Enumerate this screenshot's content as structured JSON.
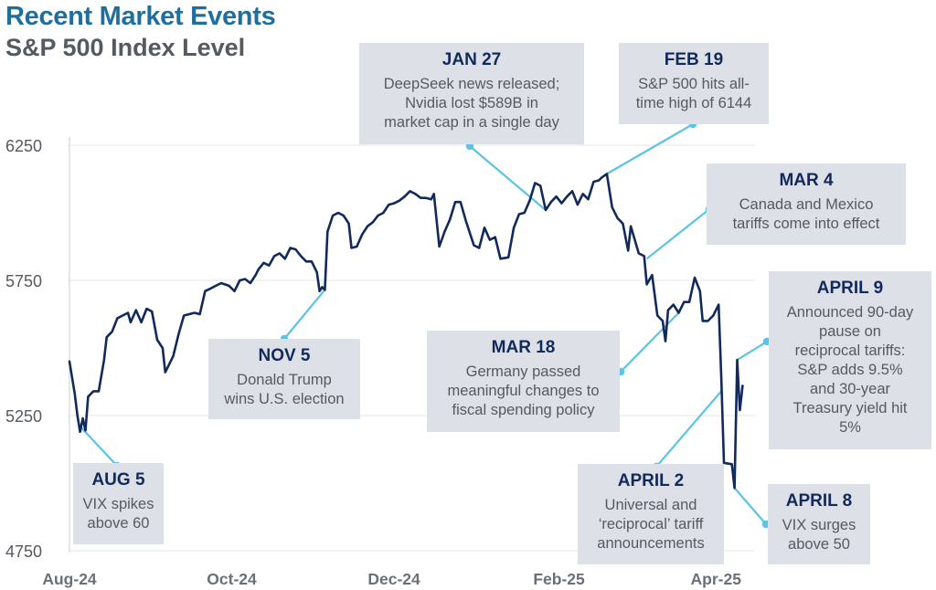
{
  "title": "Recent Market Events",
  "subtitle": "S&P 500 Index Level",
  "colors": {
    "title": "#1f6f9e",
    "line": "#12295c",
    "connector": "#5cc2e6",
    "box": "#dde1e7",
    "grid": "#e4e6ea",
    "text": "#555a60"
  },
  "chart_data": {
    "type": "line",
    "title": "Recent Market Events",
    "subtitle": "S&P 500 Index Level",
    "ylim": [
      4750,
      6300
    ],
    "yticks": [
      "6250",
      "5750",
      "5250",
      "4750"
    ],
    "xticks": [
      "Aug-24",
      "Oct-24",
      "Dec-24",
      "Feb-25",
      "Apr-25"
    ],
    "grid": true,
    "series": [
      {
        "values": [
          [
            "2024-08-01",
            5450
          ],
          [
            "2024-08-03",
            5330
          ],
          [
            "2024-08-04",
            5250
          ],
          [
            "2024-08-05",
            5190
          ],
          [
            "2024-08-06",
            5240
          ],
          [
            "2024-08-07",
            5195
          ],
          [
            "2024-08-08",
            5320
          ],
          [
            "2024-08-10",
            5340
          ],
          [
            "2024-08-12",
            5340
          ],
          [
            "2024-08-14",
            5455
          ],
          [
            "2024-08-15",
            5540
          ],
          [
            "2024-08-17",
            5560
          ],
          [
            "2024-08-19",
            5610
          ],
          [
            "2024-08-21",
            5620
          ],
          [
            "2024-08-23",
            5630
          ],
          [
            "2024-08-24",
            5595
          ],
          [
            "2024-08-26",
            5640
          ],
          [
            "2024-08-28",
            5595
          ],
          [
            "2024-08-30",
            5645
          ],
          [
            "2024-09-01",
            5635
          ],
          [
            "2024-09-03",
            5530
          ],
          [
            "2024-09-05",
            5500
          ],
          [
            "2024-09-06",
            5410
          ],
          [
            "2024-09-09",
            5470
          ],
          [
            "2024-09-11",
            5550
          ],
          [
            "2024-09-13",
            5620
          ],
          [
            "2024-09-17",
            5630
          ],
          [
            "2024-09-19",
            5625
          ],
          [
            "2024-09-21",
            5710
          ],
          [
            "2024-09-23",
            5720
          ],
          [
            "2024-09-25",
            5730
          ],
          [
            "2024-09-27",
            5740
          ],
          [
            "2024-09-30",
            5730
          ],
          [
            "2024-10-02",
            5710
          ],
          [
            "2024-10-04",
            5750
          ],
          [
            "2024-10-06",
            5755
          ],
          [
            "2024-10-08",
            5740
          ],
          [
            "2024-10-10",
            5770
          ],
          [
            "2024-10-11",
            5790
          ],
          [
            "2024-10-13",
            5815
          ],
          [
            "2024-10-15",
            5805
          ],
          [
            "2024-10-17",
            5840
          ],
          [
            "2024-10-19",
            5850
          ],
          [
            "2024-10-21",
            5830
          ],
          [
            "2024-10-23",
            5870
          ],
          [
            "2024-10-25",
            5865
          ],
          [
            "2024-10-27",
            5840
          ],
          [
            "2024-10-29",
            5820
          ],
          [
            "2024-10-31",
            5820
          ],
          [
            "2024-11-02",
            5780
          ],
          [
            "2024-11-03",
            5710
          ],
          [
            "2024-11-04",
            5725
          ],
          [
            "2024-11-05",
            5715
          ],
          [
            "2024-11-06",
            5930
          ],
          [
            "2024-11-08",
            5990
          ],
          [
            "2024-11-10",
            6000
          ],
          [
            "2024-11-12",
            5990
          ],
          [
            "2024-11-14",
            5960
          ],
          [
            "2024-11-15",
            5870
          ],
          [
            "2024-11-17",
            5875
          ],
          [
            "2024-11-19",
            5920
          ],
          [
            "2024-11-21",
            5950
          ],
          [
            "2024-11-23",
            5965
          ],
          [
            "2024-11-25",
            5990
          ],
          [
            "2024-11-27",
            6000
          ],
          [
            "2024-11-29",
            6030
          ],
          [
            "2024-12-01",
            6035
          ],
          [
            "2024-12-03",
            6045
          ],
          [
            "2024-12-05",
            6060
          ],
          [
            "2024-12-07",
            6080
          ],
          [
            "2024-12-09",
            6070
          ],
          [
            "2024-12-11",
            6055
          ],
          [
            "2024-12-13",
            6055
          ],
          [
            "2024-12-15",
            6050
          ],
          [
            "2024-12-16",
            6070
          ],
          [
            "2024-12-18",
            5875
          ],
          [
            "2024-12-20",
            5930
          ],
          [
            "2024-12-22",
            5975
          ],
          [
            "2024-12-24",
            6040
          ],
          [
            "2024-12-26",
            6040
          ],
          [
            "2024-12-28",
            5970
          ],
          [
            "2024-12-31",
            5880
          ],
          [
            "2025-01-02",
            5870
          ],
          [
            "2025-01-04",
            5945
          ],
          [
            "2025-01-06",
            5900
          ],
          [
            "2025-01-08",
            5910
          ],
          [
            "2025-01-10",
            5830
          ],
          [
            "2025-01-13",
            5835
          ],
          [
            "2025-01-15",
            5945
          ],
          [
            "2025-01-17",
            5995
          ],
          [
            "2025-01-19",
            6000
          ],
          [
            "2025-01-21",
            6045
          ],
          [
            "2025-01-23",
            6110
          ],
          [
            "2025-01-25",
            6100
          ],
          [
            "2025-01-27",
            6010
          ],
          [
            "2025-01-29",
            6040
          ],
          [
            "2025-01-31",
            6060
          ],
          [
            "2025-02-02",
            6035
          ],
          [
            "2025-02-04",
            6060
          ],
          [
            "2025-02-06",
            6080
          ],
          [
            "2025-02-08",
            6030
          ],
          [
            "2025-02-10",
            6070
          ],
          [
            "2025-02-12",
            6050
          ],
          [
            "2025-02-14",
            6115
          ],
          [
            "2025-02-16",
            6120
          ],
          [
            "2025-02-17",
            6130
          ],
          [
            "2025-02-19",
            6144
          ],
          [
            "2025-02-21",
            6020
          ],
          [
            "2025-02-23",
            5980
          ],
          [
            "2025-02-25",
            5960
          ],
          [
            "2025-02-27",
            5860
          ],
          [
            "2025-02-28",
            5950
          ],
          [
            "2025-03-03",
            5850
          ],
          [
            "2025-03-05",
            5840
          ],
          [
            "2025-03-06",
            5735
          ],
          [
            "2025-03-08",
            5770
          ],
          [
            "2025-03-10",
            5620
          ],
          [
            "2025-03-12",
            5600
          ],
          [
            "2025-03-13",
            5525
          ],
          [
            "2025-03-14",
            5640
          ],
          [
            "2025-03-16",
            5660
          ],
          [
            "2025-03-18",
            5630
          ],
          [
            "2025-03-20",
            5670
          ],
          [
            "2025-03-22",
            5670
          ],
          [
            "2025-03-24",
            5760
          ],
          [
            "2025-03-26",
            5710
          ],
          [
            "2025-03-27",
            5600
          ],
          [
            "2025-03-29",
            5600
          ],
          [
            "2025-03-31",
            5620
          ],
          [
            "2025-04-02",
            5660
          ],
          [
            "2025-04-03",
            5390
          ],
          [
            "2025-04-04",
            5075
          ],
          [
            "2025-04-07",
            5070
          ],
          [
            "2025-04-08",
            4982
          ],
          [
            "2025-04-09",
            5456
          ],
          [
            "2025-04-10",
            5270
          ],
          [
            "2025-04-11",
            5360
          ]
        ]
      }
    ],
    "annotations": [
      {
        "heading": "JAN 27",
        "text": "DeepSeek news released;\nNvidia lost $589B in\nmarket cap in a single day"
      },
      {
        "heading": "FEB 19",
        "text": "S&P 500 hits all-\ntime high of 6144"
      },
      {
        "heading": "MAR 4",
        "text": "Canada and Mexico\ntariffs come into effect"
      },
      {
        "heading": "APRIL 9",
        "text": "Announced 90-day\npause on\nreciprocal tariffs:\nS&P adds 9.5%\nand 30-year\nTreasury yield hit\n5%"
      },
      {
        "heading": "NOV 5",
        "text": "Donald Trump\nwins U.S. election"
      },
      {
        "heading": "MAR 18",
        "text": "Germany passed\nmeaningful changes to\nfiscal spending policy"
      },
      {
        "heading": "AUG 5",
        "text": "VIX spikes\nabove 60"
      },
      {
        "heading": "APRIL 2",
        "text": "Universal and\n‘reciprocal’ tariff\nannouncements"
      },
      {
        "heading": "APRIL 8",
        "text": "VIX surges\nabove 50"
      }
    ]
  }
}
